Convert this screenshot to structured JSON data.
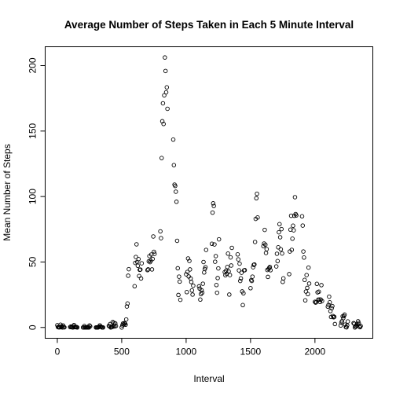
{
  "chart_data": {
    "type": "scatter",
    "title": "Average Number of Steps Taken in Each 5 Minute Interval",
    "xlabel": "Interval",
    "ylabel": "Mean Number of Steps",
    "xlim": [
      -94.2,
      2449.2
    ],
    "ylim": [
      -8.25,
      214.4
    ],
    "xticks": [
      0,
      500,
      1000,
      1500,
      2000
    ],
    "yticks": [
      0,
      50,
      100,
      150,
      200
    ],
    "color": "#000000",
    "x": [
      0,
      5,
      10,
      15,
      20,
      25,
      30,
      35,
      40,
      45,
      50,
      55,
      100,
      105,
      110,
      115,
      120,
      125,
      130,
      135,
      140,
      145,
      150,
      155,
      200,
      205,
      210,
      215,
      220,
      225,
      230,
      235,
      240,
      245,
      250,
      255,
      300,
      305,
      310,
      315,
      320,
      325,
      330,
      335,
      340,
      345,
      350,
      355,
      400,
      405,
      410,
      415,
      420,
      425,
      430,
      435,
      440,
      445,
      450,
      455,
      500,
      505,
      510,
      515,
      520,
      525,
      530,
      535,
      540,
      545,
      550,
      555,
      600,
      605,
      610,
      615,
      620,
      625,
      630,
      635,
      640,
      645,
      650,
      655,
      700,
      705,
      710,
      715,
      720,
      725,
      730,
      735,
      740,
      745,
      750,
      755,
      800,
      805,
      810,
      815,
      820,
      825,
      830,
      835,
      840,
      845,
      850,
      855,
      900,
      905,
      910,
      915,
      920,
      925,
      930,
      935,
      940,
      945,
      950,
      955,
      1000,
      1005,
      1010,
      1015,
      1020,
      1025,
      1030,
      1035,
      1040,
      1045,
      1050,
      1055,
      1100,
      1105,
      1110,
      1115,
      1120,
      1125,
      1130,
      1135,
      1140,
      1145,
      1150,
      1155,
      1200,
      1205,
      1210,
      1215,
      1220,
      1225,
      1230,
      1235,
      1240,
      1245,
      1250,
      1255,
      1300,
      1305,
      1310,
      1315,
      1320,
      1325,
      1330,
      1335,
      1340,
      1345,
      1350,
      1355,
      1400,
      1405,
      1410,
      1415,
      1420,
      1425,
      1430,
      1435,
      1440,
      1445,
      1450,
      1455,
      1500,
      1505,
      1510,
      1515,
      1520,
      1525,
      1530,
      1535,
      1540,
      1545,
      1550,
      1555,
      1600,
      1605,
      1610,
      1615,
      1620,
      1625,
      1630,
      1635,
      1640,
      1645,
      1650,
      1655,
      1700,
      1705,
      1710,
      1715,
      1720,
      1725,
      1730,
      1735,
      1740,
      1745,
      1750,
      1755,
      1800,
      1805,
      1810,
      1815,
      1820,
      1825,
      1830,
      1835,
      1840,
      1845,
      1850,
      1855,
      1900,
      1905,
      1910,
      1915,
      1920,
      1925,
      1930,
      1935,
      1940,
      1945,
      1950,
      1955,
      2000,
      2005,
      2010,
      2015,
      2020,
      2025,
      2030,
      2035,
      2040,
      2045,
      2050,
      2055,
      2100,
      2105,
      2110,
      2115,
      2120,
      2125,
      2130,
      2135,
      2140,
      2145,
      2150,
      2155,
      2200,
      2205,
      2210,
      2215,
      2220,
      2225,
      2230,
      2235,
      2240,
      2245,
      2250,
      2255,
      2300,
      2305,
      2310,
      2315,
      2320,
      2325,
      2330,
      2335,
      2340,
      2345,
      2350,
      2355
    ],
    "values": [
      1.7,
      0.3,
      0.1,
      0.2,
      0.1,
      2.1,
      0.5,
      0.9,
      0,
      1.5,
      0.3,
      0.1,
      0.3,
      0.7,
      0.2,
      0.3,
      0,
      1.1,
      1.8,
      0.2,
      0.2,
      0.4,
      0.3,
      0,
      0,
      0,
      1.1,
      0,
      0,
      0.1,
      0,
      0.2,
      0,
      0,
      1.5,
      0.9,
      0,
      0,
      0,
      0,
      0.2,
      0.6,
      1.6,
      0.6,
      0.5,
      0.1,
      0,
      0,
      1.2,
      0.9,
      2.6,
      0,
      0.3,
      0.4,
      4.1,
      0.7,
      3.5,
      0.8,
      3.1,
      1.1,
      0,
      1.6,
      3,
      2.2,
      3.3,
      3,
      2.1,
      6.1,
      16,
      18.3,
      39.5,
      44.5,
      31.5,
      49.3,
      53.8,
      63.5,
      50,
      47.1,
      52.2,
      39.3,
      44,
      44.2,
      37.4,
      49,
      43.8,
      44.4,
      50.5,
      54.5,
      49.9,
      51,
      55.7,
      44.3,
      52.3,
      69.5,
      57.8,
      56.2,
      73.4,
      68.2,
      129.4,
      157.5,
      171.2,
      155.4,
      177.3,
      206.2,
      195.9,
      179.6,
      183.4,
      167,
      143.5,
      124,
      109.1,
      108.1,
      103.7,
      96,
      66.2,
      45.2,
      24.8,
      38.8,
      35,
      21.1,
      40.6,
      27,
      42.4,
      52.7,
      38.9,
      50.8,
      44.3,
      37.4,
      34.7,
      28.3,
      25.1,
      31.9,
      31.4,
      29.7,
      21.3,
      25.5,
      28.4,
      26.5,
      33.4,
      50,
      42,
      44.6,
      46,
      59.2,
      63.9,
      87.7,
      94.8,
      92.8,
      63.4,
      50.2,
      54.5,
      32.4,
      26.5,
      37.7,
      45.1,
      67.3,
      42.3,
      39.9,
      43.3,
      41,
      46.2,
      56.4,
      42.8,
      25.1,
      40,
      53.5,
      47.3,
      60.8,
      55.8,
      52,
      43.6,
      48.7,
      35.5,
      37.5,
      41.8,
      27.5,
      17.1,
      26.1,
      43.6,
      43.8,
      30,
      36.1,
      35.5,
      38.8,
      46,
      47.8,
      48.1,
      65.3,
      82.9,
      98.7,
      102.1,
      84,
      62.1,
      64.1,
      74.5,
      63.2,
      56.9,
      59.8,
      43.9,
      38.6,
      44.7,
      45.5,
      46.2,
      43.7,
      46.6,
      56.3,
      50.7,
      61.2,
      72.7,
      78.9,
      68.9,
      59.7,
      75.1,
      56.5,
      34.8,
      37.5,
      40.7,
      58,
      74.7,
      85.3,
      59.3,
      67.8,
      77.7,
      74.2,
      85.3,
      99.5,
      86.6,
      85.6,
      84.9,
      77.8,
      58,
      53.4,
      36.3,
      20.7,
      27.4,
      40,
      30.2,
      25.5,
      45.7,
      33.5,
      19.6,
      19,
      19.3,
      33.3,
      26.8,
      21.2,
      27.3,
      21.3,
      19.5,
      21.3,
      32.3,
      20.2,
      15.9,
      17.2,
      23.5,
      19.2,
      12.5,
      8,
      14.7,
      16.3,
      8.7,
      7.8,
      8.1,
      2.6,
      1.5,
      3.7,
      4.8,
      8.5,
      7.1,
      8.7,
      9.8,
      2.2,
      0.3,
      0.1,
      1.6,
      4.6,
      3.3,
      2.8,
      0,
      0.8,
      1,
      1.6,
      2.6,
      4.7,
      3.3,
      0.6,
      0.2,
      1.1
    ]
  }
}
